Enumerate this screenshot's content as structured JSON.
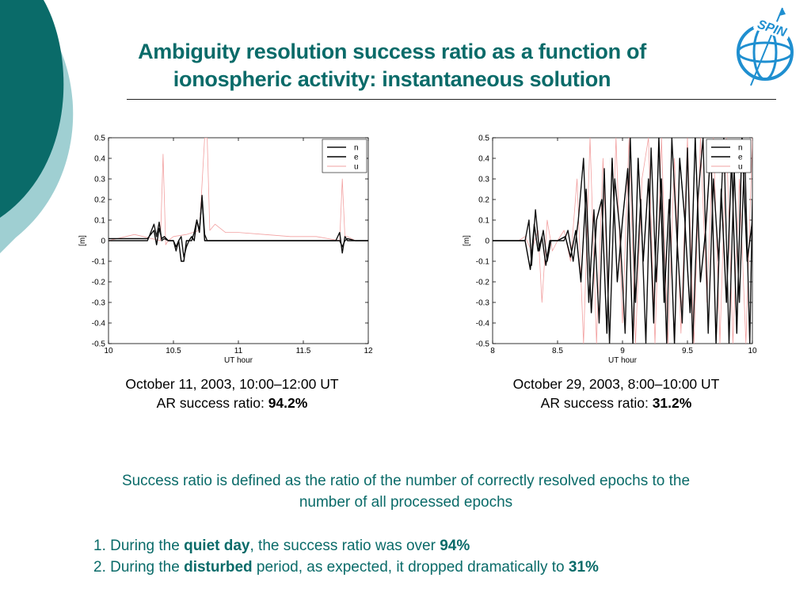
{
  "slide": {
    "title_line1": "Ambiguity resolution success ratio as a function of",
    "title_line2": "ionospheric activity: instantaneous solution",
    "logo_text": "SPIN",
    "colors": {
      "teal": "#0a6b69",
      "light_teal": "#9fcfd2",
      "logo_blue": "#1f8fd0"
    }
  },
  "captions": [
    {
      "line1": "October 11,  2003, 10:00–12:00 UT",
      "line2_prefix": "AR success ratio: ",
      "line2_value": "94.2%"
    },
    {
      "line1": "October 29, 2003, 8:00–10:00 UT",
      "line2_prefix": "AR success ratio: ",
      "line2_value": "31.2%"
    }
  ],
  "definition": "Success ratio is defined as the ratio of the number of correctly resolved epochs to the number of all processed epochs",
  "findings": [
    {
      "num": "1.",
      "pre": "During the ",
      "bold": "quiet day",
      "mid": ", the success ratio was over ",
      "value": "94%"
    },
    {
      "num": "2.",
      "pre": "During the ",
      "bold": "disturbed",
      "mid": " period, as expected, it dropped dramatically to ",
      "value": "31%"
    }
  ],
  "chart_data": [
    {
      "type": "line",
      "xlabel": "UT hour",
      "ylabel": "[m]",
      "xlim": [
        10,
        12
      ],
      "ylim": [
        -0.5,
        0.5
      ],
      "xticks": [
        "10",
        "10.5",
        "11",
        "11.5",
        "12"
      ],
      "xtick_values": [
        10,
        10.5,
        11,
        11.5,
        12
      ],
      "yticks": [
        "0.5",
        "0.4",
        "0.3",
        "0.2",
        "0.1",
        "0",
        "-0.1",
        "-0.2",
        "-0.3",
        "-0.4",
        "-0.5"
      ],
      "ytick_values": [
        0.5,
        0.4,
        0.3,
        0.2,
        0.1,
        0,
        -0.1,
        -0.2,
        -0.3,
        -0.4,
        -0.5
      ],
      "legend_position": "top-right",
      "series": [
        {
          "name": "n",
          "color": "#111111",
          "x": [
            10,
            10.3,
            10.35,
            10.37,
            10.39,
            10.41,
            10.43,
            10.46,
            10.5,
            10.52,
            10.54,
            10.56,
            10.58,
            10.6,
            10.62,
            10.64,
            10.66,
            10.68,
            10.7,
            10.72,
            10.74,
            10.76,
            10.8,
            11,
            11.2,
            11.5,
            11.75,
            11.78,
            11.8,
            11.82,
            11.84,
            11.9,
            12
          ],
          "y": [
            0.0,
            0.0,
            0.08,
            0.02,
            0.09,
            0.0,
            0.01,
            0.0,
            0.0,
            -0.05,
            0.0,
            0.02,
            -0.08,
            -0.03,
            0.0,
            0.0,
            0.04,
            0.1,
            0.04,
            0.22,
            0.03,
            0.0,
            0.0,
            0.0,
            0.0,
            0.0,
            0.0,
            0.04,
            -0.06,
            0.02,
            0.0,
            0.0,
            0.0
          ]
        },
        {
          "name": "e",
          "color": "#000000",
          "x": [
            10,
            10.3,
            10.35,
            10.37,
            10.39,
            10.41,
            10.43,
            10.46,
            10.5,
            10.52,
            10.54,
            10.56,
            10.58,
            10.6,
            10.62,
            10.64,
            10.66,
            10.68,
            10.7,
            10.72,
            10.74,
            10.76,
            10.8,
            11,
            11.2,
            11.5,
            11.75,
            11.78,
            11.8,
            11.82,
            11.84,
            11.9,
            12
          ],
          "y": [
            0.01,
            0.01,
            0.05,
            -0.02,
            0.06,
            0.01,
            0.02,
            0.0,
            0.0,
            -0.03,
            0.0,
            -0.1,
            -0.1,
            0.0,
            0.0,
            0.02,
            0.0,
            0.1,
            0.05,
            0.21,
            0.0,
            0.0,
            0.0,
            0.0,
            0.0,
            0.0,
            0.0,
            0.0,
            -0.03,
            0.0,
            0.01,
            0.0,
            0.0
          ]
        },
        {
          "name": "u",
          "color": "#f2a0a0",
          "x": [
            10,
            10.2,
            10.4,
            10.42,
            10.44,
            10.46,
            10.5,
            10.6,
            10.7,
            10.74,
            10.76,
            10.78,
            10.82,
            10.9,
            11,
            11.2,
            11.4,
            11.6,
            11.78,
            11.8,
            11.82,
            11.84,
            11.9,
            12
          ],
          "y": [
            0.0,
            0.03,
            0.0,
            0.42,
            -0.02,
            0.0,
            0.02,
            0.03,
            0.05,
            0.5,
            0.5,
            0.05,
            0.08,
            0.04,
            0.04,
            0.03,
            0.02,
            0.02,
            0.0,
            0.3,
            0.02,
            0.02,
            0.0,
            0.0
          ]
        }
      ]
    },
    {
      "type": "line",
      "xlabel": "UT hour",
      "ylabel": "[m]",
      "xlim": [
        8,
        10
      ],
      "ylim": [
        -0.5,
        0.5
      ],
      "xticks": [
        "8",
        "8.5",
        "9",
        "9.5",
        "10"
      ],
      "xtick_values": [
        8,
        8.5,
        9,
        9.5,
        10
      ],
      "yticks": [
        "0.5",
        "0.4",
        "0.3",
        "0.2",
        "0.1",
        "0",
        "-0.1",
        "-0.2",
        "-0.3",
        "-0.4",
        "-0.5"
      ],
      "ytick_values": [
        0.5,
        0.4,
        0.3,
        0.2,
        0.1,
        0,
        -0.1,
        -0.2,
        -0.3,
        -0.4,
        -0.5
      ],
      "legend_position": "top-right",
      "series": [
        {
          "name": "n",
          "color": "#111111",
          "x": [
            8,
            8.25,
            8.28,
            8.3,
            8.33,
            8.36,
            8.39,
            8.42,
            8.45,
            8.5,
            8.55,
            8.58,
            8.62,
            8.66,
            8.7,
            8.74,
            8.78,
            8.82,
            8.86,
            8.9,
            8.94,
            8.98,
            9.02,
            9.06,
            9.1,
            9.14,
            9.18,
            9.22,
            9.26,
            9.3,
            9.34,
            9.38,
            9.42,
            9.46,
            9.5,
            9.54,
            9.58,
            9.62,
            9.66,
            9.7,
            9.74,
            9.78,
            9.82,
            9.86,
            9.9,
            9.94,
            9.98,
            10
          ],
          "y": [
            0.0,
            0.0,
            0.1,
            -0.12,
            0.15,
            -0.05,
            0.05,
            -0.1,
            0.0,
            0.0,
            0.0,
            0.05,
            -0.1,
            0.1,
            0.4,
            -0.3,
            0.15,
            -0.4,
            0.35,
            -0.5,
            0.3,
            0.05,
            -0.45,
            0.5,
            -0.3,
            0.2,
            -0.5,
            0.45,
            -0.2,
            0.3,
            -0.5,
            0.5,
            0.0,
            -0.4,
            0.45,
            -0.5,
            0.2,
            0.5,
            -0.45,
            0.3,
            -0.1,
            0.5,
            -0.5,
            0.35,
            -0.3,
            0.45,
            -0.5,
            0.2
          ]
        },
        {
          "name": "e",
          "color": "#000000",
          "x": [
            8,
            8.25,
            8.29,
            8.32,
            8.35,
            8.38,
            8.41,
            8.44,
            8.47,
            8.5,
            8.56,
            8.6,
            8.64,
            8.68,
            8.72,
            8.76,
            8.8,
            8.84,
            8.88,
            8.92,
            8.96,
            9.0,
            9.04,
            9.08,
            9.12,
            9.16,
            9.2,
            9.24,
            9.28,
            9.32,
            9.36,
            9.4,
            9.44,
            9.48,
            9.52,
            9.56,
            9.6,
            9.64,
            9.68,
            9.72,
            9.76,
            9.8,
            9.84,
            9.88,
            9.92,
            9.96,
            10
          ],
          "y": [
            0.0,
            0.0,
            -0.14,
            0.08,
            -0.05,
            0.02,
            -0.12,
            0.0,
            0.0,
            0.0,
            0.02,
            -0.08,
            0.05,
            -0.2,
            0.25,
            -0.35,
            0.1,
            0.2,
            -0.45,
            0.4,
            -0.2,
            0.1,
            0.35,
            -0.5,
            0.4,
            -0.1,
            0.3,
            -0.4,
            0.5,
            -0.3,
            0.2,
            -0.5,
            0.4,
            0.1,
            -0.35,
            0.5,
            -0.2,
            0.05,
            0.45,
            -0.5,
            0.25,
            -0.3,
            0.4,
            -0.45,
            0.5,
            -0.1,
            0.1
          ]
        },
        {
          "name": "u",
          "color": "#f2a0a0",
          "x": [
            8,
            8.2,
            8.25,
            8.3,
            8.35,
            8.38,
            8.42,
            8.46,
            8.5,
            8.55,
            8.6,
            8.65,
            8.7,
            8.75,
            8.8,
            8.85,
            8.9,
            8.95,
            9.0,
            9.05,
            9.1,
            9.15,
            9.2,
            9.25,
            9.3,
            9.35,
            9.4,
            9.45,
            9.5,
            9.55,
            9.6,
            9.65,
            9.7,
            9.75,
            9.8,
            9.85,
            9.9,
            9.95,
            10
          ],
          "y": [
            0.0,
            0.0,
            0.02,
            -0.05,
            0.05,
            -0.3,
            0.1,
            -0.05,
            0.0,
            0.05,
            -0.1,
            0.3,
            -0.5,
            0.5,
            -0.5,
            0.4,
            -0.5,
            0.5,
            -0.4,
            0.5,
            -0.5,
            0.3,
            0.5,
            -0.5,
            0.5,
            -0.5,
            0.4,
            -0.45,
            0.5,
            -0.5,
            0.5,
            -0.3,
            0.5,
            -0.5,
            0.5,
            -0.5,
            0.3,
            -0.5,
            0.5
          ]
        }
      ]
    }
  ]
}
